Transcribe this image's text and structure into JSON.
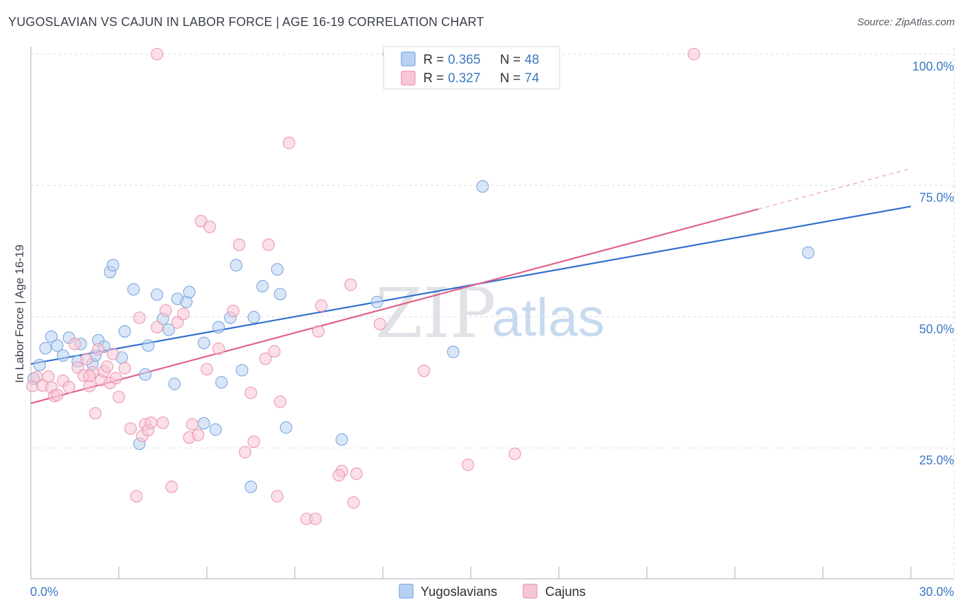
{
  "header": {
    "title": "YUGOSLAVIAN VS CAJUN IN LABOR FORCE | AGE 16-19 CORRELATION CHART",
    "source": "Source: ZipAtlas.com"
  },
  "watermark": {
    "zip": "ZIP",
    "atlas": "atlas"
  },
  "colors": {
    "yugoslavian_fill": "#b8d1f2",
    "yugoslavian_stroke": "#7aa6de",
    "yugoslavian_line": "#2e6fcc",
    "cajun_fill": "#f7c6d4",
    "cajun_stroke": "#ec97b1",
    "cajun_line": "#e0608b",
    "tick_text": "#3b78c4",
    "grid": "#d9dce1"
  },
  "legend": {
    "rows": [
      {
        "r_label": "R = ",
        "r_value": "0.365",
        "n_label": "N = ",
        "n_value": "48"
      },
      {
        "r_label": "R = ",
        "r_value": "0.327",
        "n_label": "N = ",
        "n_value": "74"
      }
    ]
  },
  "chart_data": {
    "type": "scatter",
    "title": "YUGOSLAVIAN VS CAJUN IN LABOR FORCE | AGE 16-19 CORRELATION CHART",
    "xlabel": "",
    "ylabel": "In Labor Force | Age 16-19",
    "xlim": [
      0,
      30
    ],
    "ylim": [
      0,
      105
    ],
    "x_tick_labels": [
      {
        "value": 0,
        "label": "0.0%"
      },
      {
        "value": 30,
        "label": "30.0%"
      }
    ],
    "y_tick_labels": [
      {
        "value": 25,
        "label": "25.0%"
      },
      {
        "value": 50,
        "label": "50.0%"
      },
      {
        "value": 75,
        "label": "75.0%"
      },
      {
        "value": 100,
        "label": "100.0%"
      }
    ],
    "x_minor_ticks": [
      0,
      3,
      6,
      9,
      12,
      15,
      18,
      21,
      24,
      27,
      30
    ],
    "series": [
      {
        "name": "Yugoslavians",
        "r": 0.365,
        "n": 48,
        "trend": {
          "x0": 0,
          "y0": 41,
          "x1": 30,
          "y1": 71
        },
        "points": [
          [
            0.1,
            38.2
          ],
          [
            0.3,
            40.8
          ],
          [
            0.5,
            44.0
          ],
          [
            0.7,
            46.2
          ],
          [
            0.9,
            44.5
          ],
          [
            1.1,
            42.6
          ],
          [
            1.3,
            46.0
          ],
          [
            1.6,
            41.5
          ],
          [
            1.7,
            44.8
          ],
          [
            2.1,
            41.0
          ],
          [
            2.2,
            42.6
          ],
          [
            2.3,
            45.5
          ],
          [
            2.5,
            44.3
          ],
          [
            2.7,
            58.5
          ],
          [
            2.8,
            59.8
          ],
          [
            3.1,
            42.2
          ],
          [
            3.2,
            47.2
          ],
          [
            3.5,
            55.2
          ],
          [
            3.7,
            25.8
          ],
          [
            3.9,
            39.0
          ],
          [
            4.0,
            44.5
          ],
          [
            4.3,
            54.2
          ],
          [
            4.5,
            49.6
          ],
          [
            4.7,
            47.5
          ],
          [
            4.9,
            37.2
          ],
          [
            5.0,
            53.4
          ],
          [
            5.3,
            52.8
          ],
          [
            5.4,
            54.7
          ],
          [
            5.9,
            45.0
          ],
          [
            5.9,
            29.7
          ],
          [
            6.3,
            28.5
          ],
          [
            6.4,
            48.0
          ],
          [
            6.5,
            37.5
          ],
          [
            6.8,
            49.8
          ],
          [
            7.0,
            59.8
          ],
          [
            7.2,
            39.8
          ],
          [
            7.5,
            17.6
          ],
          [
            7.6,
            49.9
          ],
          [
            7.9,
            55.8
          ],
          [
            8.4,
            59.0
          ],
          [
            8.5,
            54.3
          ],
          [
            8.7,
            28.9
          ],
          [
            10.6,
            26.6
          ],
          [
            11.8,
            52.8
          ],
          [
            12.7,
            100.0
          ],
          [
            14.4,
            43.3
          ],
          [
            15.4,
            74.8
          ],
          [
            26.5,
            62.2
          ]
        ]
      },
      {
        "name": "Cajuns",
        "r": 0.327,
        "n": 74,
        "trend": {
          "x0": 0,
          "y0": 33.5,
          "x1": 24.8,
          "y1": 70.5
        },
        "trend_dashed": {
          "x0": 24.8,
          "y0": 70.5,
          "x1": 30,
          "y1": 78.2
        },
        "points": [
          [
            0.05,
            36.8
          ],
          [
            0.2,
            38.5
          ],
          [
            0.4,
            36.9
          ],
          [
            0.6,
            38.6
          ],
          [
            0.7,
            36.5
          ],
          [
            0.8,
            34.9
          ],
          [
            0.9,
            35.1
          ],
          [
            1.1,
            37.8
          ],
          [
            1.3,
            36.6
          ],
          [
            1.5,
            44.8
          ],
          [
            1.6,
            40.3
          ],
          [
            1.8,
            38.8
          ],
          [
            1.9,
            41.9
          ],
          [
            2.0,
            36.8
          ],
          [
            2.1,
            39.4
          ],
          [
            2.2,
            31.6
          ],
          [
            2.3,
            43.8
          ],
          [
            2.4,
            37.9
          ],
          [
            2.5,
            39.6
          ],
          [
            2.6,
            40.5
          ],
          [
            2.7,
            37.4
          ],
          [
            2.8,
            42.9
          ],
          [
            2.9,
            38.3
          ],
          [
            3.0,
            34.7
          ],
          [
            3.2,
            40.2
          ],
          [
            3.4,
            28.7
          ],
          [
            3.6,
            15.8
          ],
          [
            3.7,
            49.8
          ],
          [
            3.8,
            27.3
          ],
          [
            3.9,
            29.5
          ],
          [
            4.0,
            28.4
          ],
          [
            4.1,
            29.8
          ],
          [
            4.3,
            48.0
          ],
          [
            4.5,
            29.8
          ],
          [
            4.6,
            51.2
          ],
          [
            4.8,
            17.6
          ],
          [
            5.0,
            48.9
          ],
          [
            5.2,
            50.5
          ],
          [
            5.4,
            27.0
          ],
          [
            5.5,
            29.5
          ],
          [
            5.7,
            27.5
          ],
          [
            5.8,
            68.2
          ],
          [
            6.0,
            40.0
          ],
          [
            6.1,
            67.1
          ],
          [
            6.4,
            43.9
          ],
          [
            6.9,
            51.1
          ],
          [
            7.1,
            63.7
          ],
          [
            7.3,
            24.2
          ],
          [
            7.5,
            35.5
          ],
          [
            7.6,
            26.2
          ],
          [
            8.0,
            42.0
          ],
          [
            8.1,
            63.7
          ],
          [
            8.3,
            43.4
          ],
          [
            8.4,
            15.8
          ],
          [
            8.5,
            33.8
          ],
          [
            8.8,
            83.1
          ],
          [
            9.4,
            11.5
          ],
          [
            9.7,
            11.5
          ],
          [
            9.8,
            47.2
          ],
          [
            9.9,
            52.1
          ],
          [
            10.6,
            20.6
          ],
          [
            10.9,
            56.1
          ],
          [
            11.0,
            14.6
          ],
          [
            11.1,
            20.1
          ],
          [
            11.9,
            48.6
          ],
          [
            12.2,
            100.0
          ],
          [
            12.6,
            100.0
          ],
          [
            13.4,
            39.7
          ],
          [
            14.9,
            21.8
          ],
          [
            16.5,
            23.9
          ],
          [
            22.6,
            100.0
          ],
          [
            4.3,
            100.0
          ],
          [
            10.5,
            19.8
          ],
          [
            2.0,
            38.7
          ]
        ]
      }
    ],
    "legend": [
      "Yugoslavians",
      "Cajuns"
    ]
  }
}
